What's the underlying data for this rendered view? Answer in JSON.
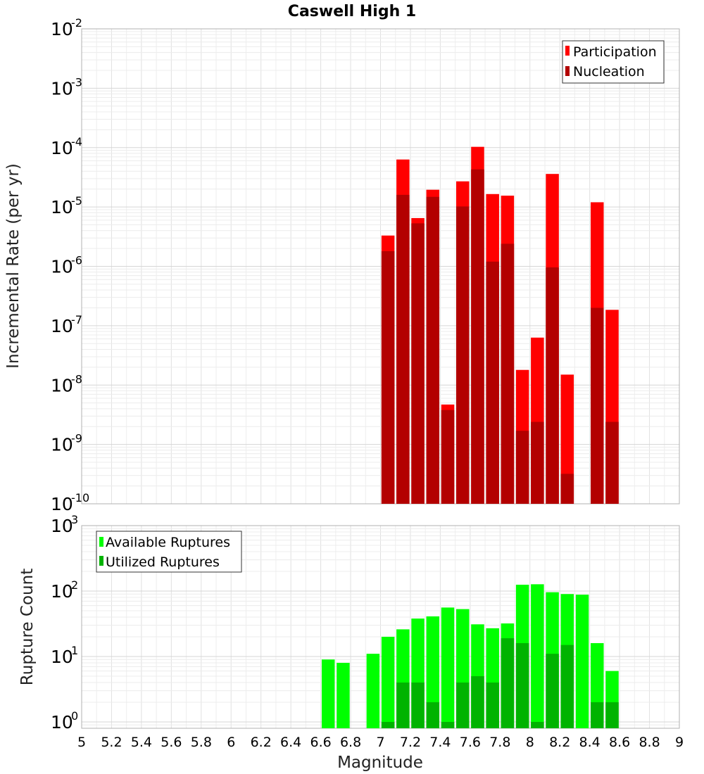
{
  "chart_data": [
    {
      "type": "bar",
      "title": "Caswell High 1",
      "ylabel": "Incremental Rate (per yr)",
      "xlabel": "",
      "xlim": [
        5,
        9
      ],
      "ylim": [
        1e-10,
        0.01
      ],
      "log_y": true,
      "grid": true,
      "legend_position": "top-right",
      "x": [
        7.0,
        7.1,
        7.2,
        7.3,
        7.4,
        7.5,
        7.6,
        7.7,
        7.8,
        7.9,
        8.0,
        8.1,
        8.2,
        8.3,
        8.4,
        8.5
      ],
      "series": [
        {
          "name": "Participation",
          "color": "#ff0000",
          "values": [
            3.3e-06,
            6.3e-05,
            6.5e-06,
            1.95e-05,
            4.7e-09,
            2.7e-05,
            0.000103,
            1.65e-05,
            1.55e-05,
            1.8e-08,
            6.3e-08,
            3.6e-05,
            1.5e-08,
            null,
            1.2e-05,
            1.85e-07
          ]
        },
        {
          "name": "Nucleation",
          "color": "#b30000",
          "values": [
            1.8e-06,
            1.6e-05,
            5.3e-06,
            1.48e-05,
            3.8e-09,
            1.02e-05,
            4.3e-05,
            1.2e-06,
            2.4e-06,
            1.7e-09,
            2.4e-09,
            9.6e-07,
            3.2e-10,
            null,
            2e-07,
            2.4e-09
          ]
        }
      ]
    },
    {
      "type": "bar",
      "title": "",
      "ylabel": "Rupture Count",
      "xlabel": "Magnitude",
      "xlim": [
        5,
        9
      ],
      "ylim": [
        0.8,
        1000
      ],
      "log_y": true,
      "grid": true,
      "legend_position": "top-left",
      "x_ticks": [
        "5",
        "5.2",
        "5.4",
        "5.6",
        "5.8",
        "6",
        "6.2",
        "6.4",
        "6.6",
        "6.8",
        "7",
        "7.2",
        "7.4",
        "7.6",
        "7.8",
        "8",
        "8.2",
        "8.4",
        "8.6",
        "8.8",
        "9"
      ],
      "x": [
        6.6,
        6.7,
        6.8,
        6.9,
        7.0,
        7.1,
        7.2,
        7.3,
        7.4,
        7.5,
        7.6,
        7.7,
        7.8,
        7.9,
        8.0,
        8.1,
        8.2,
        8.3,
        8.4,
        8.5
      ],
      "series": [
        {
          "name": "Available Ruptures",
          "color": "#00ff00",
          "values": [
            9,
            8,
            null,
            11,
            20,
            26,
            38,
            41,
            56,
            53,
            31,
            27,
            32,
            125,
            127,
            96,
            90,
            88,
            16,
            6
          ]
        },
        {
          "name": "Utilized Ruptures",
          "color": "#00b300",
          "values": [
            null,
            null,
            null,
            null,
            1,
            4,
            4,
            2,
            1,
            4,
            5,
            4,
            19,
            16,
            1,
            11,
            15,
            null,
            2,
            2
          ]
        }
      ]
    }
  ]
}
